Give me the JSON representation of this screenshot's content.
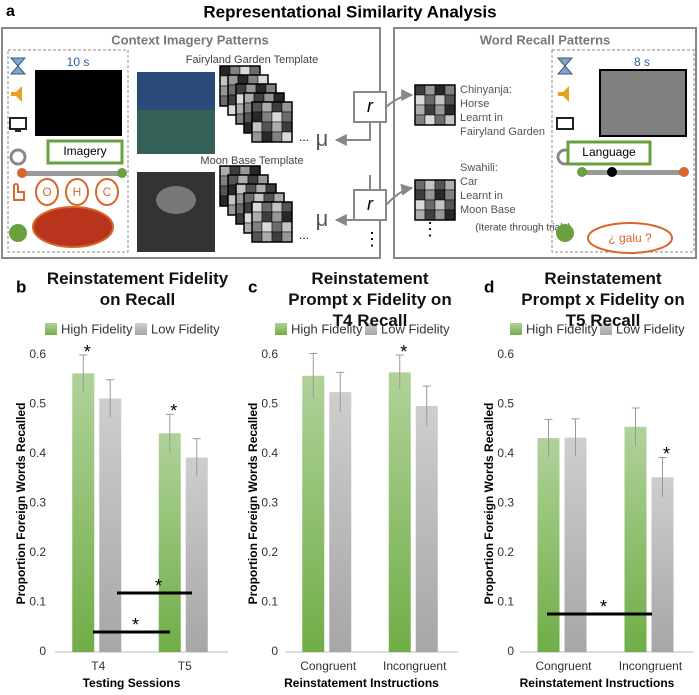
{
  "panel_a": {
    "panel_label": "a",
    "title": "Representational Similarity Analysis",
    "left_box_title": "Context Imagery Patterns",
    "right_box_title": "Word Recall Patterns",
    "imagery_duration": "10 s",
    "imagery_label": "Imagery",
    "keys": [
      "O",
      "H",
      "C"
    ],
    "template_1": "Fairyland Garden Template",
    "template_2": "Moon Base Template",
    "ellipsis": "...",
    "mu": "μ",
    "r": "r",
    "vertical_ellipsis": "⋮",
    "word_1": [
      "Chinyanja:",
      "Horse",
      "Learnt in",
      "Fairyland Garden"
    ],
    "word_2": [
      "Swahili:",
      "Car",
      "Learnt in",
      "Moon Base"
    ],
    "iterate": "(Iterate through trials)",
    "recall_duration": "8 s",
    "recall_label": "Language",
    "cue": "¿ galu ?"
  },
  "chart_data": [
    {
      "type": "bar",
      "panel_label": "b",
      "title": "Reinstatement Fidelity on Recall",
      "x_label": "Testing Sessions",
      "y_label": "Proportion Foreign Words Recalled",
      "categories": [
        "T4",
        "T5"
      ],
      "ylim": [
        0,
        0.6
      ],
      "yticks": [
        0,
        0.1,
        0.2,
        0.3,
        0.4,
        0.5,
        0.6
      ],
      "legend": "top",
      "series": [
        {
          "name": "High Fidelity",
          "color": "#70ad47",
          "values": [
            0.563,
            0.442
          ],
          "errors": [
            0.037,
            0.038
          ],
          "markers": [
            "*",
            "*"
          ]
        },
        {
          "name": "Low Fidelity",
          "color": "#a6a6a6",
          "values": [
            0.512,
            0.393
          ],
          "errors": [
            0.038,
            0.038
          ],
          "markers": [
            null,
            null
          ]
        }
      ],
      "brackets": [
        {
          "label": "*"
        },
        {
          "label": "*"
        }
      ]
    },
    {
      "type": "bar",
      "panel_label": "c",
      "title": "Reinstatement Prompt x Fidelity on T4 Recall",
      "x_label": "Reinstatement Instructions",
      "y_label": "Proportion Foreign Words Recalled",
      "categories": [
        "Congruent",
        "Incongruent"
      ],
      "ylim": [
        0,
        0.6
      ],
      "yticks": [
        0,
        0.1,
        0.2,
        0.3,
        0.4,
        0.5,
        0.6
      ],
      "legend": "top",
      "series": [
        {
          "name": "High Fidelity",
          "color": "#70ad47",
          "values": [
            0.558,
            0.565
          ],
          "errors": [
            0.045,
            0.035
          ],
          "markers": [
            null,
            "*"
          ]
        },
        {
          "name": "Low Fidelity",
          "color": "#a6a6a6",
          "values": [
            0.525,
            0.497
          ],
          "errors": [
            0.04,
            0.04
          ],
          "markers": [
            null,
            null
          ]
        }
      ],
      "brackets": []
    },
    {
      "type": "bar",
      "panel_label": "d",
      "title": "Reinstatement Prompt x Fidelity on T5 Recall",
      "x_label": "Reinstatement Instructions",
      "y_label": "Proportion Foreign Words Recalled",
      "categories": [
        "Congruent",
        "Incongruent"
      ],
      "ylim": [
        0,
        0.6
      ],
      "yticks": [
        0,
        0.1,
        0.2,
        0.3,
        0.4,
        0.5,
        0.6
      ],
      "legend": "top",
      "series": [
        {
          "name": "High Fidelity",
          "color": "#70ad47",
          "values": [
            0.432,
            0.455
          ],
          "errors": [
            0.038,
            0.038
          ],
          "markers": [
            null,
            null
          ]
        },
        {
          "name": "Low Fidelity",
          "color": "#a6a6a6",
          "values": [
            0.433,
            0.353
          ],
          "errors": [
            0.038,
            0.04
          ],
          "markers": [
            null,
            "*"
          ]
        }
      ],
      "brackets": [
        {
          "label": "*"
        }
      ]
    }
  ]
}
